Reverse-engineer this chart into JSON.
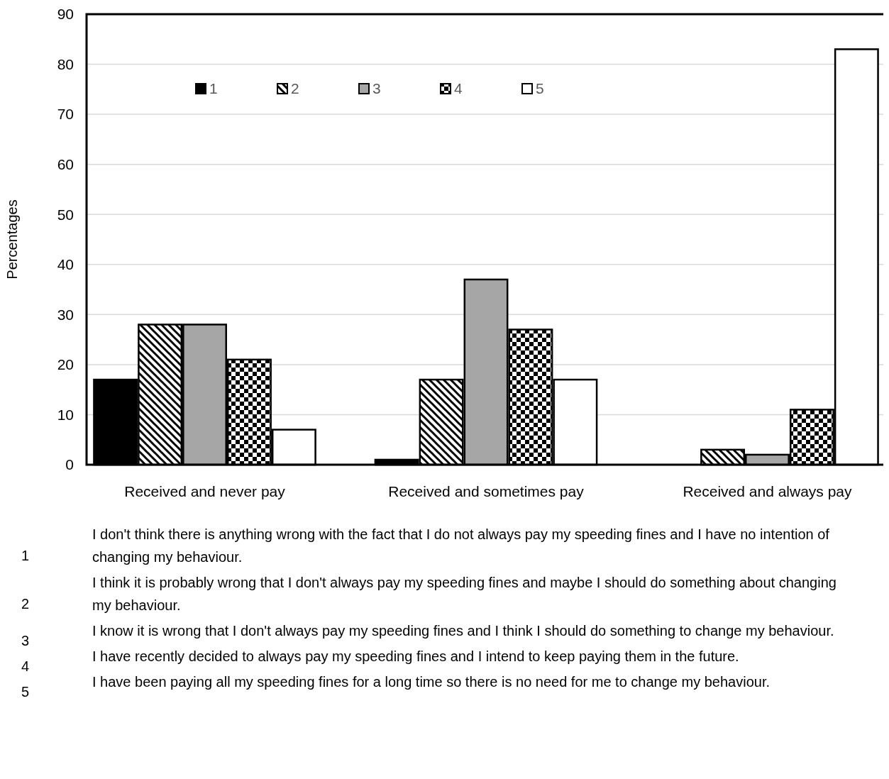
{
  "chart_data": {
    "type": "bar",
    "ylabel": "Percentages",
    "categories": [
      "Received and never pay",
      "Received and sometimes pay",
      "Received and always pay"
    ],
    "series": [
      {
        "name": "1",
        "color": "#000000",
        "values": [
          17,
          1,
          0
        ]
      },
      {
        "name": "2",
        "color": "#000000",
        "values": [
          28,
          17,
          3
        ]
      },
      {
        "name": "3",
        "color": "#a6a6a6",
        "values": [
          28,
          37,
          2
        ]
      },
      {
        "name": "4",
        "color": "#000000",
        "values": [
          21,
          27,
          11
        ]
      },
      {
        "name": "5",
        "color": "#ffffff",
        "values": [
          7,
          17,
          83
        ]
      }
    ],
    "ylim": [
      0,
      90
    ],
    "yticks": [
      0,
      10,
      20,
      30,
      40,
      50,
      60,
      70,
      80,
      90
    ],
    "grid": "y",
    "legend": "top left",
    "annotations": [
      "I don't think there is anything wrong with the fact that I do not always pay my speeding fines and I have no intention of changing my behaviour.",
      "I think it is probably wrong that I don't always pay my speeding fines and maybe I should do something about changing my behaviour.",
      "I know it is wrong that I don't always pay my speeding fines and I think I should do something to change my behaviour.",
      "I have recently decided to always pay my speeding fines and I intend to keep paying them in the future.",
      "I have been paying all my speeding fines for a long time so there is no need for me to change my behaviour."
    ]
  }
}
